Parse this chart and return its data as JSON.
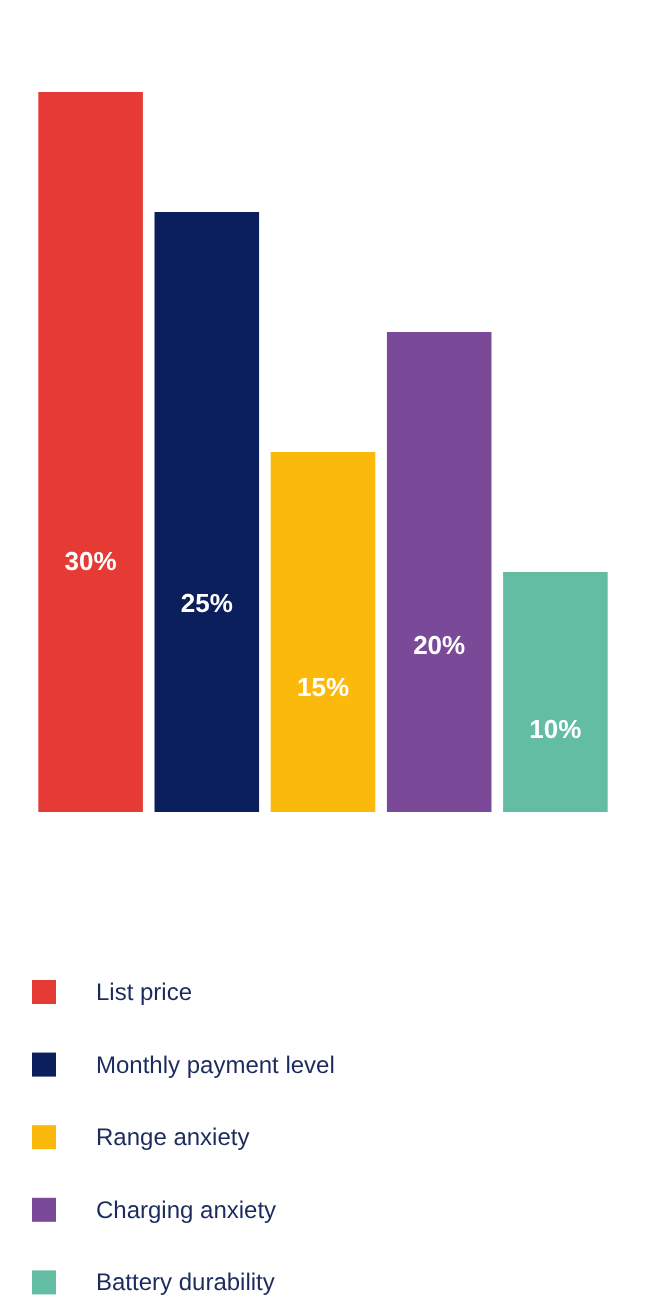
{
  "chart_data": {
    "type": "bar",
    "categories": [
      null,
      null,
      null,
      null,
      null
    ],
    "stacked": true,
    "series": [
      {
        "name": "List price",
        "color": "#e63a34",
        "values": [
          30,
          null,
          null,
          null,
          null
        ],
        "value_labels": [
          "30%",
          null,
          null,
          null,
          null
        ]
      },
      {
        "name": "Monthly payment level",
        "color": "#0b1f5c",
        "values": [
          null,
          25,
          null,
          null,
          null
        ],
        "value_labels": [
          null,
          "25%",
          null,
          null,
          null
        ]
      },
      {
        "name": "Range anxiety",
        "color": "#fbba0b",
        "values": [
          null,
          null,
          15,
          null,
          null
        ],
        "value_labels": [
          null,
          null,
          "15%",
          null,
          null
        ]
      },
      {
        "name": "Charging anxiety",
        "color": "#7a4a98",
        "values": [
          null,
          null,
          null,
          20,
          null
        ],
        "value_labels": [
          null,
          null,
          null,
          "20%",
          null
        ]
      },
      {
        "name": "Battery durability",
        "color": "#62bda2",
        "values": [
          null,
          null,
          null,
          null,
          10
        ],
        "value_labels": [
          null,
          null,
          null,
          null,
          "10%"
        ]
      }
    ],
    "ylim": [
      0,
      30
    ],
    "legend": "bottom"
  }
}
